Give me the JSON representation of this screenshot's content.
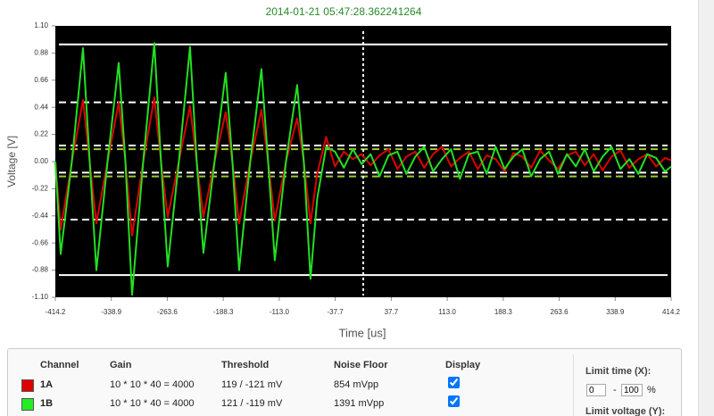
{
  "chart_data": {
    "type": "line",
    "title": "2014-01-21 05:47:28.362241264",
    "x_label": "Time [us]",
    "y_label": "Voltage [V]",
    "xlim": [
      -414.2,
      414.2
    ],
    "ylim": [
      -1.1,
      1.1
    ],
    "xticks": [
      -414.2,
      -338.9,
      -263.6,
      -188.3,
      {
        "value": -113,
        "label": "-113.0"
      },
      -37.7,
      37.7,
      {
        "value": 113,
        "label": "113.0"
      },
      188.3,
      263.6,
      338.9,
      414.2
    ],
    "yticks": [
      {
        "value": 1.1,
        "label": "1.10"
      },
      0.88,
      0.66,
      0.44,
      0.22,
      {
        "value": 0,
        "label": "0.00"
      },
      -0.22,
      -0.44,
      -0.66,
      -0.88,
      {
        "value": -1.1,
        "label": "-1.10"
      }
    ],
    "hlines": [
      {
        "value": 0.95,
        "style": "solid",
        "color": "#ffffff"
      },
      {
        "value": -0.92,
        "style": "solid",
        "color": "#ffffff"
      },
      {
        "value": 0.48,
        "style": "dashed",
        "color": "#ffffff"
      },
      {
        "value": -0.47,
        "style": "dashed",
        "color": "#ffffff"
      },
      {
        "value": 0.13,
        "style": "dashed",
        "color": "#ffffff"
      },
      {
        "value": -0.09,
        "style": "dashed",
        "color": "#ffffff"
      },
      {
        "value": 0.1,
        "style": "dashed",
        "color": "#9acd32"
      },
      {
        "value": -0.12,
        "style": "dashed",
        "color": "#9acd32"
      }
    ],
    "vlines": [
      {
        "value": 0,
        "style": "dotted",
        "color": "#ffffff"
      }
    ],
    "x": [
      -414.2,
      -407,
      -392,
      -377,
      -368,
      -359,
      -344,
      -329,
      -320,
      -311,
      -296,
      -281,
      -272,
      -263,
      -248,
      -233,
      -224,
      -215,
      -200,
      -185,
      -176,
      -167,
      -152,
      -137,
      -128,
      -119,
      -104,
      -89,
      -80,
      -71,
      -62,
      -50,
      -38,
      -26,
      -14,
      -2,
      10,
      22,
      34,
      46,
      58,
      70,
      82,
      94,
      106,
      118,
      130,
      142,
      154,
      166,
      178,
      190,
      202,
      214,
      226,
      238,
      250,
      262,
      274,
      286,
      298,
      310,
      322,
      334,
      346,
      358,
      370,
      382,
      394,
      406,
      414.2
    ],
    "series": [
      {
        "name": "1A",
        "color": "#dd0000",
        "values": [
          0.0,
          -0.55,
          0.0,
          0.5,
          0.0,
          -0.5,
          0.0,
          0.48,
          0.0,
          -0.6,
          0.0,
          0.52,
          0.0,
          -0.45,
          0.0,
          0.45,
          0.0,
          -0.45,
          0.0,
          0.4,
          0.0,
          -0.5,
          0.0,
          0.42,
          0.0,
          -0.48,
          0.0,
          0.35,
          0.0,
          -0.5,
          -0.1,
          0.2,
          -0.04,
          0.08,
          0.02,
          0.06,
          -0.03,
          0.05,
          0.1,
          -0.06,
          0.04,
          0.08,
          -0.05,
          0.06,
          0.12,
          -0.04,
          0.03,
          0.08,
          -0.06,
          0.05,
          0.02,
          -0.08,
          0.07,
          0.04,
          -0.05,
          0.09,
          0.01,
          -0.06,
          0.05,
          0.08,
          -0.03,
          0.06,
          -0.07,
          0.04,
          0.09,
          -0.05,
          0.02,
          0.06,
          -0.04,
          0.03,
          0.01
        ]
      },
      {
        "name": "1B",
        "color": "#22e022",
        "values": [
          0.0,
          -0.75,
          0.0,
          0.92,
          0.0,
          -0.88,
          0.0,
          0.8,
          0.0,
          -1.08,
          0.0,
          0.96,
          0.0,
          -0.85,
          0.0,
          0.93,
          0.0,
          -0.74,
          0.0,
          0.72,
          0.0,
          -0.88,
          0.0,
          0.75,
          0.0,
          -0.8,
          0.0,
          0.62,
          0.0,
          -0.95,
          -0.3,
          0.12,
          0.08,
          -0.05,
          0.1,
          -0.02,
          0.06,
          -0.12,
          0.05,
          0.08,
          -0.1,
          0.04,
          0.12,
          -0.08,
          0.02,
          0.1,
          -0.14,
          0.06,
          0.08,
          -0.1,
          0.12,
          -0.06,
          0.04,
          0.1,
          -0.12,
          0.02,
          0.08,
          -0.1,
          0.06,
          -0.04,
          0.1,
          -0.08,
          0.04,
          0.12,
          -0.06,
          0.02,
          -0.1,
          0.06,
          0.03,
          -0.08,
          -0.04
        ]
      }
    ]
  },
  "channels_panel": {
    "headers": [
      "Channel",
      "Gain",
      "Threshold",
      "Noise Floor",
      "Display"
    ],
    "rows": [
      {
        "color": "#e00000",
        "channel": "1A",
        "gain": "10 * 10 * 40 = 4000",
        "threshold": "119 / -121 mV",
        "noise_floor": "854 mVpp",
        "display": true
      },
      {
        "color": "#22ee22",
        "channel": "1B",
        "gain": "10 * 10 * 40 = 4000",
        "threshold": "121 / -119 mV",
        "noise_floor": "1391 mVpp",
        "display": true
      }
    ]
  },
  "limits_panel": {
    "time_label": "Limit time (X):",
    "time_min": 0,
    "range_separator": "-",
    "time_max": 100,
    "time_unit": "%",
    "voltage_label": "Limit voltage (Y):"
  }
}
